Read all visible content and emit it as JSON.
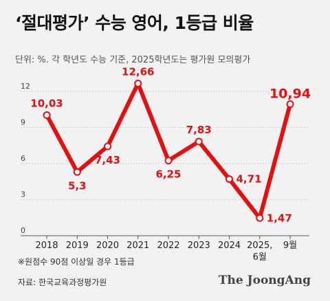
{
  "title": "‘절대평가’ 수능 영어, 1등급 비율",
  "subtitle": "단위: %. 각 학년도 수능 기준, 2025학년도는 평가원 모의평가",
  "note": "※원점수 90점 이상일 경우 1등급",
  "source": "자료: 한국교육과정평가원",
  "brand": "The JoongAng",
  "colors": {
    "line": "#e60f0f",
    "highlight": "#e60f0f",
    "axis": "#555555",
    "grid": "#cfcfcf"
  },
  "chart_data": {
    "type": "line",
    "x": [
      "2018",
      "2019",
      "2020",
      "2021",
      "2022",
      "2023",
      "2024",
      "2025, 6월",
      "9월"
    ],
    "x_tick_lines": [
      [
        "2018"
      ],
      [
        "2019"
      ],
      [
        "2020"
      ],
      [
        "2021"
      ],
      [
        "2022"
      ],
      [
        "2023"
      ],
      [
        "2024"
      ],
      [
        "2025,",
        "6월"
      ],
      [
        "9월"
      ]
    ],
    "series": [
      {
        "values": [
          10.03,
          5.3,
          7.43,
          12.66,
          6.25,
          7.83,
          4.71,
          1.47,
          10.94
        ],
        "labels": [
          "10,03",
          "5,3",
          "7,43",
          "12,66",
          "6,25",
          "7,83",
          "4,71",
          "1,47",
          "10,94"
        ]
      }
    ],
    "yticks": [
      0,
      3,
      6,
      9,
      12
    ],
    "ylim": [
      0,
      14
    ],
    "grid": true,
    "xlabel": "",
    "ylabel": ""
  }
}
